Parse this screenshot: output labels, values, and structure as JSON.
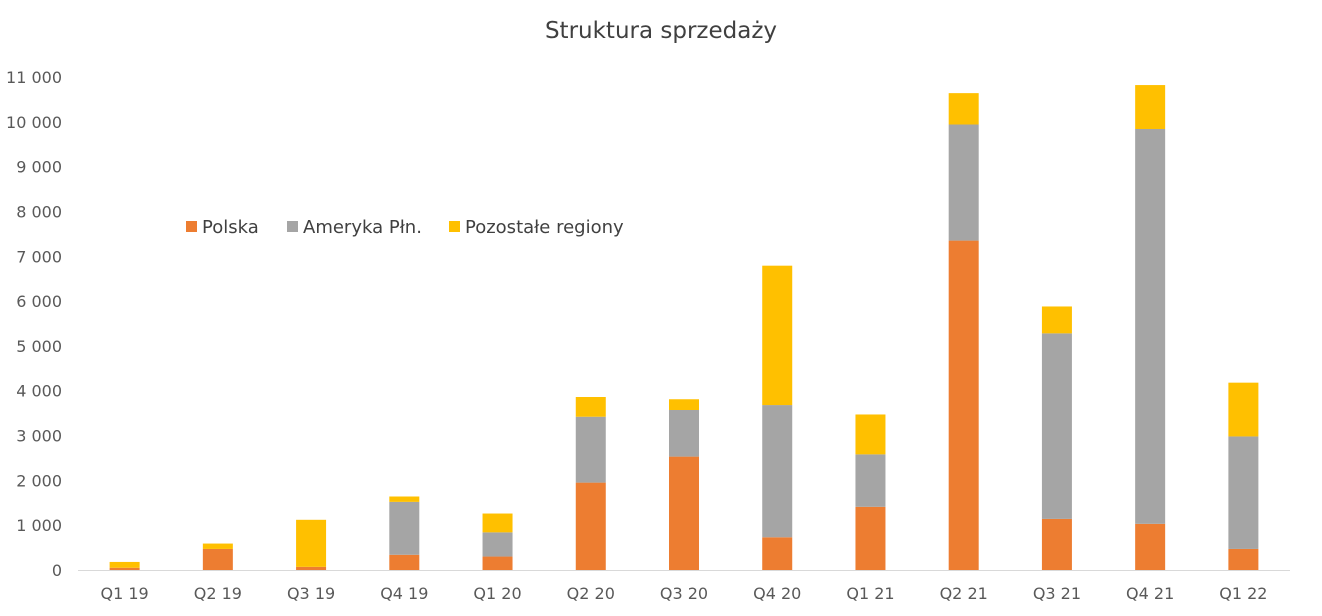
{
  "chart_data": {
    "type": "bar",
    "stacked": true,
    "title": "Struktura sprzedaży",
    "xlabel": "",
    "ylabel": "",
    "categories": [
      "Q1 19",
      "Q2 19",
      "Q3 19",
      "Q4 19",
      "Q1 20",
      "Q2 20",
      "Q3 20",
      "Q4 20",
      "Q1 21",
      "Q2 21",
      "Q3 21",
      "Q4 21",
      "Q1 22"
    ],
    "series": [
      {
        "name": "Polska",
        "color": "#ED7D31",
        "values": [
          50,
          470,
          70,
          340,
          300,
          1950,
          2530,
          730,
          1410,
          7350,
          1140,
          1030,
          470
        ]
      },
      {
        "name": "Ameryka Płn.",
        "color": "#A5A5A5",
        "values": [
          0,
          0,
          0,
          1180,
          540,
          1470,
          1040,
          2950,
          1170,
          2590,
          4140,
          8810,
          2510
        ]
      },
      {
        "name": "Pozostałe regiony",
        "color": "#FFC000",
        "values": [
          130,
          120,
          1050,
          120,
          420,
          440,
          240,
          3110,
          890,
          700,
          600,
          980,
          1200
        ]
      }
    ],
    "ylim": [
      0,
      11000
    ],
    "yticks": [
      0,
      1000,
      2000,
      3000,
      4000,
      5000,
      6000,
      7000,
      8000,
      9000,
      10000,
      11000
    ],
    "ytick_labels": [
      "0",
      "1 000",
      "2 000",
      "3 000",
      "4 000",
      "5 000",
      "6 000",
      "7 000",
      "8 000",
      "9 000",
      "10 000",
      "11 000"
    ],
    "grid": false,
    "legend_position": "top-left"
  }
}
